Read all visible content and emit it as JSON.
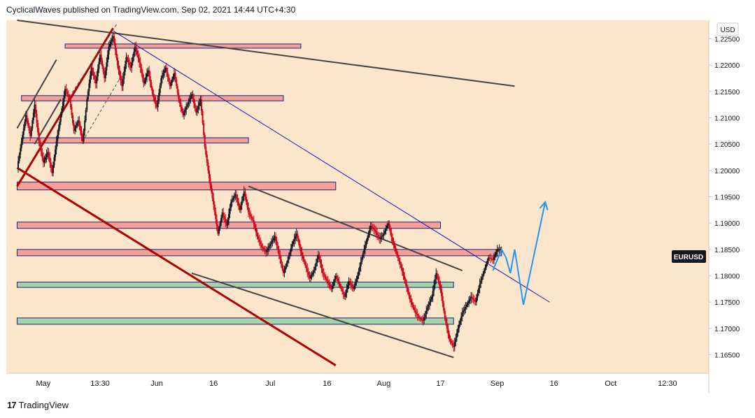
{
  "header": {
    "publisher_line": "CyclicalWaves published on TradingView.com, Sep 02, 2021 14:44 UTC+4:30"
  },
  "footer": {
    "logo_glyph": "17",
    "brand": "TradingView"
  },
  "colors": {
    "background": "#fbe6cc",
    "candle_up": "#131722",
    "candle_down": "#d0021b",
    "resistance_zone": "#f4a097",
    "support_zone": "#a6d3a8",
    "zone_border": "#1a237e",
    "trendline_dark": "#444444",
    "trendline_red": "#b00000",
    "trendline_blue": "#1a1aaa",
    "projection": "#2196f3",
    "symbol_label_bg": "#131722"
  },
  "chart_data": {
    "type": "candlestick",
    "symbol": "EURUSD",
    "currency": "USD",
    "last_price": "1.18500",
    "y_axis": {
      "ylim": [
        1.1615,
        1.2285
      ],
      "ticks": [
        "1.16500",
        "1.17000",
        "1.17500",
        "1.18000",
        "1.18500",
        "1.19000",
        "1.19500",
        "1.20000",
        "1.20500",
        "1.21000",
        "1.21500",
        "1.22000",
        "1.22500"
      ]
    },
    "x_axis": {
      "ticks": [
        {
          "label": "May",
          "t": 6
        },
        {
          "label": "13:30",
          "t": 19
        },
        {
          "label": "Jun",
          "t": 32
        },
        {
          "label": "16",
          "t": 45
        },
        {
          "label": "Jul",
          "t": 58
        },
        {
          "label": "16",
          "t": 71
        },
        {
          "label": "Aug",
          "t": 84
        },
        {
          "label": "17",
          "t": 97
        },
        {
          "label": "Sep",
          "t": 110
        },
        {
          "label": "16",
          "t": 123
        },
        {
          "label": "Oct",
          "t": 136
        },
        {
          "label": "12:30",
          "t": 149
        }
      ]
    },
    "price_path": [
      {
        "t": 0,
        "p": 1.2005
      },
      {
        "t": 1,
        "p": 1.2055
      },
      {
        "t": 2,
        "p": 1.2105
      },
      {
        "t": 3,
        "p": 1.2065
      },
      {
        "t": 4,
        "p": 1.2125
      },
      {
        "t": 5,
        "p": 1.2055
      },
      {
        "t": 6,
        "p": 1.2015
      },
      {
        "t": 7,
        "p": 1.2035
      },
      {
        "t": 8,
        "p": 1.1995
      },
      {
        "t": 9,
        "p": 1.2055
      },
      {
        "t": 10,
        "p": 1.2105
      },
      {
        "t": 11,
        "p": 1.2155
      },
      {
        "t": 12,
        "p": 1.2135
      },
      {
        "t": 13,
        "p": 1.2075
      },
      {
        "t": 14,
        "p": 1.2095
      },
      {
        "t": 15,
        "p": 1.2055
      },
      {
        "t": 16,
        "p": 1.2135
      },
      {
        "t": 17,
        "p": 1.2195
      },
      {
        "t": 18,
        "p": 1.2165
      },
      {
        "t": 19,
        "p": 1.222
      },
      {
        "t": 20,
        "p": 1.2175
      },
      {
        "t": 21,
        "p": 1.2235
      },
      {
        "t": 22,
        "p": 1.2255
      },
      {
        "t": 23,
        "p": 1.22
      },
      {
        "t": 24,
        "p": 1.216
      },
      {
        "t": 25,
        "p": 1.2215
      },
      {
        "t": 26,
        "p": 1.2195
      },
      {
        "t": 27,
        "p": 1.2235
      },
      {
        "t": 28,
        "p": 1.2205
      },
      {
        "t": 29,
        "p": 1.2165
      },
      {
        "t": 30,
        "p": 1.219
      },
      {
        "t": 31,
        "p": 1.2145
      },
      {
        "t": 32,
        "p": 1.212
      },
      {
        "t": 33,
        "p": 1.2175
      },
      {
        "t": 34,
        "p": 1.2195
      },
      {
        "t": 35,
        "p": 1.216
      },
      {
        "t": 36,
        "p": 1.2185
      },
      {
        "t": 37,
        "p": 1.2135
      },
      {
        "t": 38,
        "p": 1.2105
      },
      {
        "t": 39,
        "p": 1.2125
      },
      {
        "t": 40,
        "p": 1.2145
      },
      {
        "t": 41,
        "p": 1.211
      },
      {
        "t": 42,
        "p": 1.2135
      },
      {
        "t": 43,
        "p": 1.2045
      },
      {
        "t": 44,
        "p": 1.1985
      },
      {
        "t": 45,
        "p": 1.1935
      },
      {
        "t": 46,
        "p": 1.188
      },
      {
        "t": 47,
        "p": 1.192
      },
      {
        "t": 48,
        "p": 1.1895
      },
      {
        "t": 49,
        "p": 1.194
      },
      {
        "t": 50,
        "p": 1.1955
      },
      {
        "t": 51,
        "p": 1.1925
      },
      {
        "t": 52,
        "p": 1.196
      },
      {
        "t": 53,
        "p": 1.192
      },
      {
        "t": 54,
        "p": 1.1905
      },
      {
        "t": 55,
        "p": 1.1875
      },
      {
        "t": 56,
        "p": 1.1855
      },
      {
        "t": 57,
        "p": 1.1845
      },
      {
        "t": 58,
        "p": 1.186
      },
      {
        "t": 59,
        "p": 1.1875
      },
      {
        "t": 60,
        "p": 1.184
      },
      {
        "t": 61,
        "p": 1.1805
      },
      {
        "t": 62,
        "p": 1.183
      },
      {
        "t": 63,
        "p": 1.186
      },
      {
        "t": 64,
        "p": 1.188
      },
      {
        "t": 65,
        "p": 1.1845
      },
      {
        "t": 66,
        "p": 1.182
      },
      {
        "t": 67,
        "p": 1.1795
      },
      {
        "t": 68,
        "p": 1.181
      },
      {
        "t": 69,
        "p": 1.184
      },
      {
        "t": 70,
        "p": 1.1805
      },
      {
        "t": 71,
        "p": 1.179
      },
      {
        "t": 72,
        "p": 1.1775
      },
      {
        "t": 73,
        "p": 1.18
      },
      {
        "t": 74,
        "p": 1.178
      },
      {
        "t": 75,
        "p": 1.176
      },
      {
        "t": 76,
        "p": 1.179
      },
      {
        "t": 77,
        "p": 1.1775
      },
      {
        "t": 78,
        "p": 1.18
      },
      {
        "t": 79,
        "p": 1.1835
      },
      {
        "t": 80,
        "p": 1.1865
      },
      {
        "t": 81,
        "p": 1.1895
      },
      {
        "t": 82,
        "p": 1.1885
      },
      {
        "t": 83,
        "p": 1.187
      },
      {
        "t": 84,
        "p": 1.188
      },
      {
        "t": 85,
        "p": 1.19
      },
      {
        "t": 86,
        "p": 1.1865
      },
      {
        "t": 87,
        "p": 1.184
      },
      {
        "t": 88,
        "p": 1.1815
      },
      {
        "t": 89,
        "p": 1.1785
      },
      {
        "t": 90,
        "p": 1.1755
      },
      {
        "t": 91,
        "p": 1.1735
      },
      {
        "t": 92,
        "p": 1.172
      },
      {
        "t": 93,
        "p": 1.1715
      },
      {
        "t": 94,
        "p": 1.174
      },
      {
        "t": 95,
        "p": 1.176
      },
      {
        "t": 96,
        "p": 1.1805
      },
      {
        "t": 97,
        "p": 1.1775
      },
      {
        "t": 98,
        "p": 1.172
      },
      {
        "t": 99,
        "p": 1.168
      },
      {
        "t": 100,
        "p": 1.1665
      },
      {
        "t": 101,
        "p": 1.17
      },
      {
        "t": 102,
        "p": 1.173
      },
      {
        "t": 103,
        "p": 1.1745
      },
      {
        "t": 104,
        "p": 1.176
      },
      {
        "t": 105,
        "p": 1.175
      },
      {
        "t": 106,
        "p": 1.1785
      },
      {
        "t": 107,
        "p": 1.181
      },
      {
        "t": 108,
        "p": 1.1835
      },
      {
        "t": 109,
        "p": 1.183
      },
      {
        "t": 110,
        "p": 1.185
      },
      {
        "t": 111,
        "p": 1.185
      }
    ],
    "zones": [
      {
        "kind": "resistance",
        "t1": 11,
        "t2": 65,
        "lo": 1.2235,
        "hi": 1.224
      },
      {
        "kind": "resistance",
        "t1": 1,
        "t2": 61,
        "lo": 1.2132,
        "hi": 1.2142
      },
      {
        "kind": "resistance",
        "t1": 1,
        "t2": 53,
        "lo": 1.2052,
        "hi": 1.2062
      },
      {
        "kind": "resistance",
        "t1": 0,
        "t2": 73,
        "lo": 1.1963,
        "hi": 1.1978
      },
      {
        "kind": "resistance",
        "t1": 0,
        "t2": 97,
        "lo": 1.189,
        "hi": 1.1902
      },
      {
        "kind": "resistance",
        "t1": 0,
        "t2": 111,
        "lo": 1.1838,
        "hi": 1.185
      },
      {
        "kind": "support",
        "t1": 0,
        "t2": 100,
        "lo": 1.1778,
        "hi": 1.1788
      },
      {
        "kind": "support",
        "t1": 0,
        "t2": 100,
        "lo": 1.1708,
        "hi": 1.172
      }
    ],
    "trendlines": [
      {
        "kind": "dark",
        "t1": 0,
        "p1": 1.23,
        "t2": 114,
        "p2": 1.216
      },
      {
        "kind": "dark",
        "t1": 53,
        "p1": 1.197,
        "t2": 102,
        "p2": 1.181
      },
      {
        "kind": "dark",
        "t1": 40,
        "p1": 1.1805,
        "t2": 100,
        "p2": 1.1645
      },
      {
        "kind": "blue",
        "t1": 22,
        "p1": 1.2265,
        "t2": 122,
        "p2": 1.175
      },
      {
        "kind": "red",
        "t1": 0,
        "p1": 1.2005,
        "t2": 73,
        "p2": 1.163
      },
      {
        "kind": "red",
        "t1": 0,
        "p1": 1.197,
        "t2": 22,
        "p2": 1.227
      },
      {
        "kind": "dark_thin",
        "t1": 0,
        "p1": 1.208,
        "t2": 9,
        "p2": 1.221
      },
      {
        "kind": "dark_thin",
        "t1": 4,
        "p1": 1.205,
        "t2": 10,
        "p2": 1.2135
      },
      {
        "kind": "dashed",
        "t1": 12,
        "p1": 1.214,
        "t2": 23,
        "p2": 1.228
      },
      {
        "kind": "dashed",
        "t1": 15,
        "p1": 1.2055,
        "t2": 25,
        "p2": 1.2195
      }
    ],
    "projections": [
      {
        "path": [
          {
            "t": 109,
            "p": 1.181
          },
          {
            "t": 111,
            "p": 1.185
          },
          {
            "t": 112,
            "p": 1.1835
          }
        ]
      },
      {
        "path": [
          {
            "t": 112,
            "p": 1.1835
          },
          {
            "t": 113,
            "p": 1.1805
          },
          {
            "t": 114,
            "p": 1.185
          },
          {
            "t": 116,
            "p": 1.1745
          },
          {
            "t": 121,
            "p": 1.194
          }
        ]
      }
    ],
    "legend": [],
    "grid": false
  }
}
